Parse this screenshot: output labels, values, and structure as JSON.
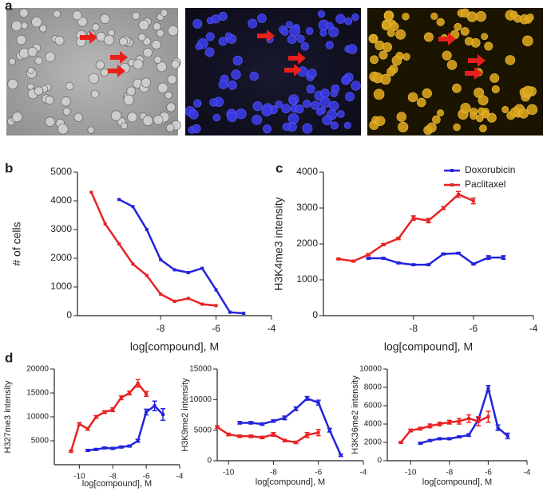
{
  "panel_labels": [
    "a",
    "b",
    "c",
    "d"
  ],
  "chart_data": [
    {
      "type": "line",
      "ylabel": "# of cells",
      "xlabel": "log[compound], M",
      "xlim": [
        -11,
        -4
      ],
      "xticks": [
        -8,
        -6,
        -4
      ],
      "ylim": [
        0,
        5000
      ],
      "yticks": [
        0,
        1000,
        2000,
        3000,
        4000,
        5000
      ],
      "series": [
        {
          "color": "#2424dc",
          "x": [
            -9.5,
            -9,
            -8.5,
            -8,
            -7.5,
            -7,
            -6.5,
            -6,
            -5.5,
            -5
          ],
          "values": [
            4050,
            3800,
            3000,
            1950,
            1600,
            1500,
            1650,
            900,
            120,
            80
          ]
        },
        {
          "color": "#e82323",
          "x": [
            -10.5,
            -10,
            -9.5,
            -9,
            -8.5,
            -8,
            -7.5,
            -7,
            -6.5,
            -6
          ],
          "values": [
            4300,
            3200,
            2500,
            1800,
            1400,
            750,
            500,
            600,
            400,
            350
          ]
        }
      ]
    },
    {
      "type": "line",
      "ylabel": "H3K4me3 intensity",
      "xlabel": "log[compound], M",
      "xlim": [
        -11,
        -4
      ],
      "xticks": [
        -8,
        -6,
        -4
      ],
      "ylim": [
        0,
        4000
      ],
      "yticks": [
        0,
        1000,
        2000,
        3000,
        4000
      ],
      "legend": "upper right",
      "series": [
        {
          "name": "Doxorubicin",
          "color": "#2424dc",
          "x": [
            -9.5,
            -9,
            -8.5,
            -8,
            -7.5,
            -7,
            -6.5,
            -6,
            -5.5,
            -5
          ],
          "values": [
            1600,
            1600,
            1470,
            1420,
            1420,
            1720,
            1740,
            1440,
            1620,
            1620
          ],
          "errors": [
            20,
            20,
            20,
            20,
            20,
            20,
            20,
            20,
            50,
            50
          ]
        },
        {
          "name": "Paclitaxel",
          "color": "#e82323",
          "x": [
            -10.5,
            -10,
            -9.5,
            -9,
            -8.5,
            -8,
            -7.5,
            -7,
            -6.5,
            -6
          ],
          "values": [
            1580,
            1520,
            1700,
            1980,
            2150,
            2720,
            2650,
            3000,
            3380,
            3200
          ],
          "errors": [
            20,
            20,
            30,
            30,
            30,
            60,
            60,
            40,
            80,
            80
          ]
        }
      ]
    },
    {
      "type": "line",
      "ylabel": "H327me3 intensity",
      "xlabel": "log[compound], M",
      "xlim": [
        -11.5,
        -4
      ],
      "xticks": [
        -10,
        -8,
        -6,
        -4
      ],
      "ylim": [
        0,
        20000
      ],
      "yticks": [
        5000,
        10000,
        15000,
        20000
      ],
      "series": [
        {
          "color": "#2424dc",
          "x": [
            -9.5,
            -9,
            -8.5,
            -8,
            -7.5,
            -7,
            -6.5,
            -6,
            -5.5,
            -5
          ],
          "values": [
            3000,
            3200,
            3500,
            3400,
            3700,
            3900,
            5000,
            11000,
            12300,
            10500
          ],
          "errors": [
            200,
            200,
            200,
            200,
            200,
            200,
            300,
            600,
            1000,
            1200
          ]
        },
        {
          "color": "#e82323",
          "x": [
            -10.5,
            -10,
            -9.5,
            -9,
            -8.5,
            -8,
            -7.5,
            -7,
            -6.5,
            -6
          ],
          "values": [
            2800,
            8500,
            7500,
            10000,
            11000,
            11500,
            14000,
            15000,
            17000,
            14800
          ],
          "errors": [
            200,
            300,
            300,
            300,
            300,
            400,
            400,
            400,
            800,
            500
          ]
        }
      ]
    },
    {
      "type": "line",
      "ylabel": "H3K9me2 intensity",
      "xlabel": "log[compound], M",
      "xlim": [
        -10.5,
        -4
      ],
      "xticks": [
        -10,
        -8,
        -6,
        -4
      ],
      "ylim": [
        0,
        15000
      ],
      "yticks": [
        0,
        5000,
        10000,
        15000
      ],
      "series": [
        {
          "color": "#2424dc",
          "x": [
            -9.5,
            -9,
            -8.5,
            -8,
            -7.5,
            -7,
            -6.5,
            -6,
            -5.5,
            -5
          ],
          "values": [
            6200,
            6200,
            6000,
            6500,
            7000,
            8500,
            10200,
            9500,
            5000,
            900
          ],
          "errors": [
            200,
            200,
            200,
            200,
            300,
            300,
            300,
            400,
            300,
            200
          ]
        },
        {
          "color": "#e82323",
          "x": [
            -10.5,
            -10,
            -9.5,
            -9,
            -8.5,
            -8,
            -7.5,
            -7,
            -6.5,
            -6
          ],
          "values": [
            5500,
            4300,
            4000,
            4000,
            3800,
            4300,
            3300,
            3000,
            4200,
            4600
          ],
          "errors": [
            200,
            200,
            200,
            200,
            200,
            300,
            200,
            200,
            400,
            500
          ]
        }
      ]
    },
    {
      "type": "line",
      "ylabel": "H3K36me2 intensity",
      "xlabel": "log[compound], M",
      "xlim": [
        -11.2,
        -4
      ],
      "xticks": [
        -10,
        -8,
        -6,
        -4
      ],
      "ylim": [
        0,
        10000
      ],
      "yticks": [
        0,
        2000,
        4000,
        6000,
        8000,
        10000
      ],
      "series": [
        {
          "color": "#2424dc",
          "x": [
            -9.5,
            -9,
            -8.5,
            -8,
            -7.5,
            -7,
            -6.5,
            -6,
            -5.5,
            -5
          ],
          "values": [
            1900,
            2200,
            2400,
            2400,
            2600,
            2800,
            4500,
            7900,
            3600,
            2700
          ],
          "errors": [
            100,
            100,
            100,
            100,
            100,
            150,
            200,
            300,
            300,
            300
          ]
        },
        {
          "color": "#e82323",
          "x": [
            -10.5,
            -10,
            -9.5,
            -9,
            -8.5,
            -8,
            -7.5,
            -7,
            -6.5,
            -6
          ],
          "values": [
            2000,
            3300,
            3500,
            3800,
            4000,
            4200,
            4300,
            4600,
            4300,
            4800
          ],
          "errors": [
            100,
            150,
            150,
            200,
            200,
            200,
            300,
            400,
            500,
            600
          ]
        }
      ]
    }
  ]
}
